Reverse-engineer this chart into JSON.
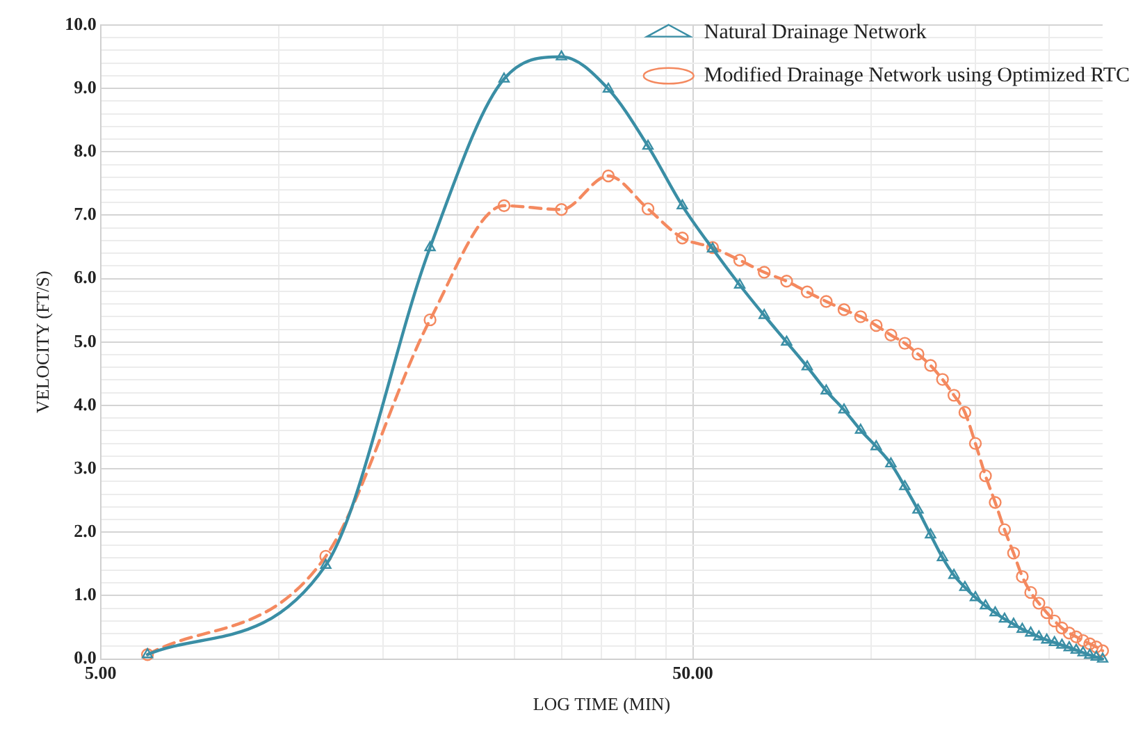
{
  "chart_data": {
    "type": "line",
    "xlabel": "LOG TIME (MIN)",
    "ylabel": "VELOCITY (FT/S)",
    "log": "x",
    "grid": true,
    "legend": "top right",
    "x": [
      6,
      12,
      18,
      24,
      30,
      36,
      42,
      48,
      54,
      60,
      66,
      72,
      78,
      84,
      90,
      96,
      102,
      108,
      114,
      120,
      126,
      132,
      138,
      144,
      150,
      156,
      162,
      168,
      174,
      180,
      186,
      192,
      198,
      204,
      210,
      216,
      222,
      228,
      234,
      240,
      246
    ],
    "xlim": [
      5,
      246
    ],
    "xticks": [
      {
        "value": 5,
        "label": "5.00"
      },
      {
        "value": 10,
        "label": null
      },
      {
        "value": 15,
        "label": null
      },
      {
        "value": 20,
        "label": null
      },
      {
        "value": 25,
        "label": null
      },
      {
        "value": 30,
        "label": null
      },
      {
        "value": 35,
        "label": null
      },
      {
        "value": 40,
        "label": null
      },
      {
        "value": 45,
        "label": null
      },
      {
        "value": 50,
        "label": "50.00"
      },
      {
        "value": 100,
        "label": null
      },
      {
        "value": 150,
        "label": null
      },
      {
        "value": 200,
        "label": null
      }
    ],
    "ylim": [
      0,
      10
    ],
    "yticks": [
      {
        "value": 0,
        "label": "0.0"
      },
      {
        "value": 0.2,
        "label": null
      },
      {
        "value": 0.4,
        "label": null
      },
      {
        "value": 0.6,
        "label": null
      },
      {
        "value": 0.8,
        "label": null
      },
      {
        "value": 1,
        "label": "1.0"
      },
      {
        "value": 1.2,
        "label": null
      },
      {
        "value": 1.4,
        "label": null
      },
      {
        "value": 1.6,
        "label": null
      },
      {
        "value": 1.8,
        "label": null
      },
      {
        "value": 2,
        "label": "2.0"
      },
      {
        "value": 2.2,
        "label": null
      },
      {
        "value": 2.4,
        "label": null
      },
      {
        "value": 2.6,
        "label": null
      },
      {
        "value": 2.8,
        "label": null
      },
      {
        "value": 3,
        "label": "3.0"
      },
      {
        "value": 3.2,
        "label": null
      },
      {
        "value": 3.4,
        "label": null
      },
      {
        "value": 3.6,
        "label": null
      },
      {
        "value": 3.8,
        "label": null
      },
      {
        "value": 4,
        "label": "4.0"
      },
      {
        "value": 4.2,
        "label": null
      },
      {
        "value": 4.4,
        "label": null
      },
      {
        "value": 4.6,
        "label": null
      },
      {
        "value": 4.8,
        "label": null
      },
      {
        "value": 5,
        "label": "5.0"
      },
      {
        "value": 5.2,
        "label": null
      },
      {
        "value": 5.4,
        "label": null
      },
      {
        "value": 5.6,
        "label": null
      },
      {
        "value": 5.8,
        "label": null
      },
      {
        "value": 6,
        "label": "6.0"
      },
      {
        "value": 6.2,
        "label": null
      },
      {
        "value": 6.4,
        "label": null
      },
      {
        "value": 6.6,
        "label": null
      },
      {
        "value": 6.8,
        "label": null
      },
      {
        "value": 7,
        "label": "7.0"
      },
      {
        "value": 7.2,
        "label": null
      },
      {
        "value": 7.4,
        "label": null
      },
      {
        "value": 7.6,
        "label": null
      },
      {
        "value": 7.8,
        "label": null
      },
      {
        "value": 8,
        "label": "8.0"
      },
      {
        "value": 8.2,
        "label": null
      },
      {
        "value": 8.4,
        "label": null
      },
      {
        "value": 8.6,
        "label": null
      },
      {
        "value": 8.8,
        "label": null
      },
      {
        "value": 9,
        "label": "9.0"
      },
      {
        "value": 9.2,
        "label": null
      },
      {
        "value": 9.4,
        "label": null
      },
      {
        "value": 9.6,
        "label": null
      },
      {
        "value": 9.8,
        "label": null
      },
      {
        "value": 10,
        "label": "10.0"
      }
    ],
    "series": [
      {
        "name": "Natural Drainage Network",
        "color": "#3a8ea5",
        "marker": "triangle",
        "line_style": "solid",
        "values": [
          0.07,
          1.48,
          6.49,
          9.15,
          9.5,
          8.99,
          8.09,
          7.15,
          6.47,
          5.9,
          5.42,
          5.0,
          4.61,
          4.23,
          3.93,
          3.61,
          3.35,
          3.08,
          2.72,
          2.35,
          1.96,
          1.6,
          1.32,
          1.13,
          0.97,
          0.84,
          0.73,
          0.63,
          0.55,
          0.47,
          0.41,
          0.35,
          0.3,
          0.26,
          0.22,
          0.18,
          0.14,
          0.1,
          0.06,
          0.03,
          0.0
        ]
      },
      {
        "name": "Modified Drainage Network using Optimized RTC",
        "color": "#f4895f",
        "marker": "circle",
        "line_style": "dashed",
        "values": [
          0.07,
          1.62,
          5.35,
          7.15,
          7.09,
          7.62,
          7.1,
          6.64,
          6.49,
          6.29,
          6.1,
          5.96,
          5.79,
          5.64,
          5.51,
          5.4,
          5.26,
          5.11,
          4.98,
          4.81,
          4.63,
          4.41,
          4.16,
          3.89,
          3.4,
          2.89,
          2.47,
          2.04,
          1.67,
          1.3,
          1.05,
          0.88,
          0.73,
          0.6,
          0.49,
          0.41,
          0.35,
          0.29,
          0.24,
          0.19,
          0.13
        ]
      }
    ]
  }
}
